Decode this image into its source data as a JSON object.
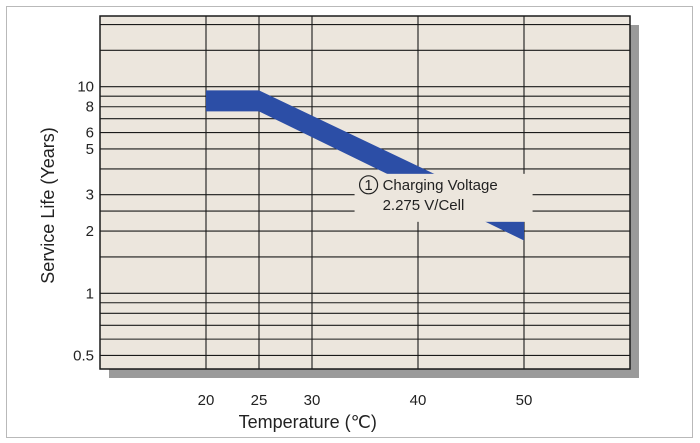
{
  "chart_data": {
    "type": "area",
    "title": "",
    "xlabel": "Temperature (℃)",
    "ylabel": "Service Life (Years)",
    "x_scale": "linear",
    "y_scale": "log",
    "x_ticks": [
      20,
      25,
      30,
      40,
      50
    ],
    "y_ticks": [
      0.5,
      1,
      2,
      3,
      5,
      6,
      8,
      10
    ],
    "y_tick_labels": [
      "0.5",
      "1",
      "2",
      "3",
      "5",
      "6",
      "8",
      "10"
    ],
    "xlim": [
      10,
      60
    ],
    "ylim": [
      0.43,
      22
    ],
    "grid": true,
    "series": [
      {
        "upper": [
          [
            20,
            9.6
          ],
          [
            25,
            9.6
          ],
          [
            50,
            2.35
          ]
        ],
        "lower": [
          [
            20,
            7.6
          ],
          [
            25,
            7.6
          ],
          [
            50,
            1.8
          ]
        ],
        "color": "#2c4ea6"
      }
    ],
    "annotations": [
      {
        "marker": "1",
        "lines": [
          "Charging Voltage",
          "2.275 V/Cell"
        ]
      }
    ]
  }
}
